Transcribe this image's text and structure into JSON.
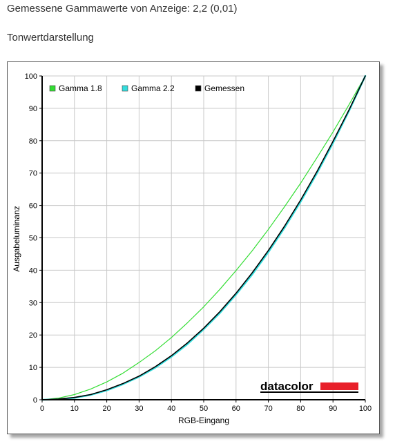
{
  "heading": "Gemessene Gammawerte von Anzeige: 2,2 (0,01)",
  "subheading": "Tonwertdarstellung",
  "logo_text": "datacolor",
  "colors": {
    "gamma18": "#33dd33",
    "gamma22": "#33dddd",
    "measured": "#000000",
    "grid": "#c8c8c8",
    "logo_bar": "#e8202a"
  },
  "chart_data": {
    "type": "line",
    "xlabel": "RGB-Eingang",
    "ylabel": "Ausgabeluminanz",
    "xlim": [
      0,
      100
    ],
    "ylim": [
      0,
      100
    ],
    "xticks": [
      0,
      10,
      20,
      30,
      40,
      50,
      60,
      70,
      80,
      90,
      100
    ],
    "yticks": [
      0,
      10,
      20,
      30,
      40,
      50,
      60,
      70,
      80,
      90,
      100
    ],
    "grid": true,
    "legend_position": "top-left",
    "series": [
      {
        "name": "Gamma 1.8",
        "color": "#33dd33",
        "x": [
          0,
          5,
          10,
          15,
          20,
          25,
          30,
          35,
          40,
          45,
          50,
          55,
          60,
          65,
          70,
          75,
          80,
          85,
          90,
          95,
          100
        ],
        "y": [
          0,
          0.5,
          1.6,
          3.3,
          5.5,
          8.2,
          11.5,
          15.1,
          19.2,
          23.8,
          28.7,
          34.1,
          39.9,
          46.0,
          52.6,
          59.6,
          66.9,
          74.7,
          82.7,
          91.2,
          100
        ]
      },
      {
        "name": "Gamma 2.2",
        "color": "#33dddd",
        "x": [
          0,
          5,
          10,
          15,
          20,
          25,
          30,
          35,
          40,
          45,
          50,
          55,
          60,
          65,
          70,
          75,
          80,
          85,
          90,
          95,
          100
        ],
        "y": [
          0,
          0.1,
          0.6,
          1.5,
          2.9,
          4.8,
          7.1,
          9.9,
          13.3,
          17.2,
          21.8,
          26.8,
          32.5,
          38.7,
          45.6,
          53.1,
          61.2,
          69.9,
          79.3,
          89.3,
          100
        ]
      },
      {
        "name": "Gemessen",
        "color": "#000000",
        "x": [
          0,
          5,
          10,
          15,
          20,
          25,
          30,
          35,
          40,
          45,
          50,
          55,
          60,
          65,
          70,
          75,
          80,
          85,
          90,
          95,
          100
        ],
        "y": [
          0,
          0.2,
          0.7,
          1.6,
          3.1,
          5.0,
          7.3,
          10.2,
          13.6,
          17.6,
          22.1,
          27.2,
          32.9,
          39.2,
          46.1,
          53.6,
          61.7,
          70.4,
          79.8,
          89.6,
          100
        ]
      }
    ]
  }
}
